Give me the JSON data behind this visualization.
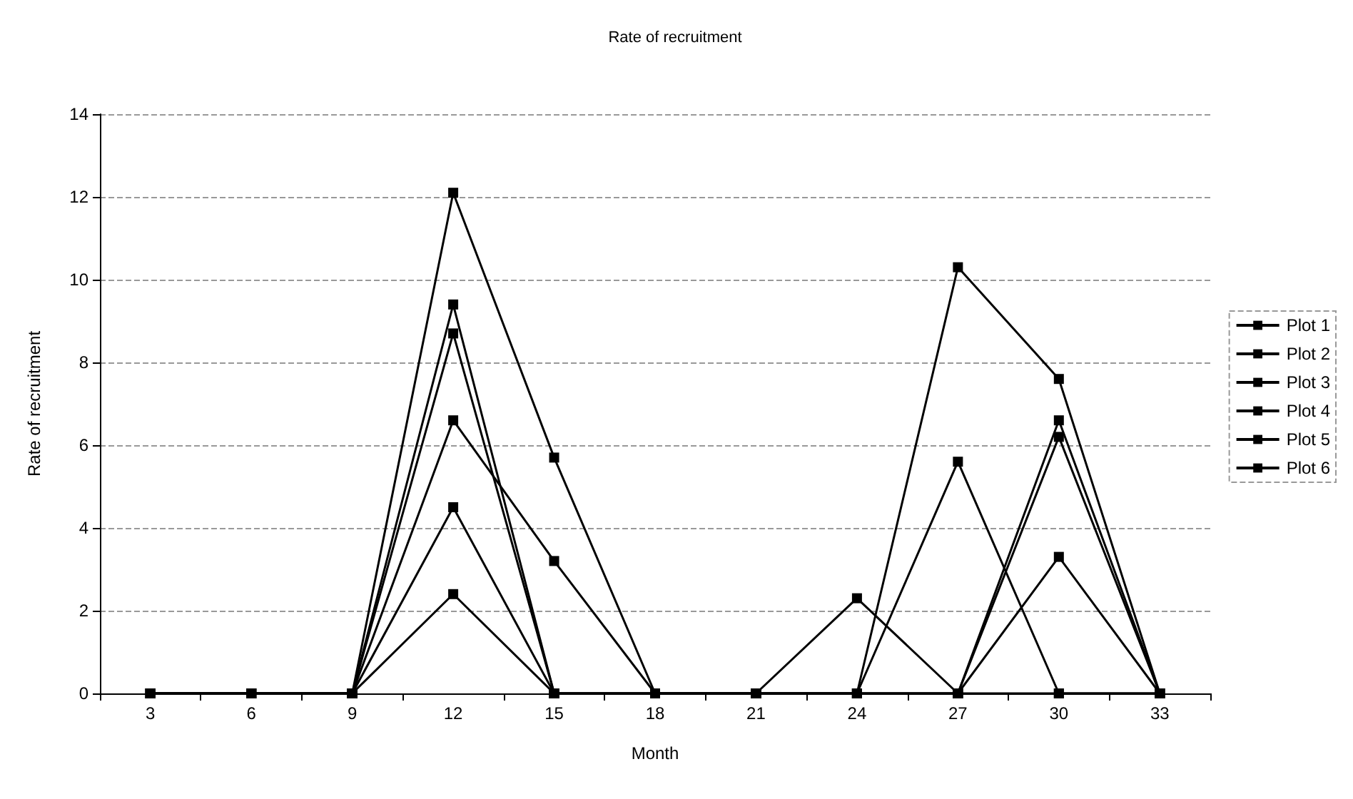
{
  "chart_data": {
    "type": "line",
    "title": "Rate of recruitment",
    "xlabel": "Month",
    "ylabel": "Rate of recruitment",
    "categories": [
      "3",
      "6",
      "9",
      "12",
      "15",
      "18",
      "21",
      "24",
      "27",
      "30",
      "33"
    ],
    "series": [
      {
        "name": "Plot 1",
        "color": "#000000",
        "values": [
          0,
          0,
          0,
          9.4,
          0,
          0,
          0,
          0,
          0,
          6.2,
          0
        ]
      },
      {
        "name": "Plot 2",
        "color": "#000000",
        "values": [
          0,
          0,
          0,
          4.5,
          0,
          0,
          0,
          2.3,
          0,
          3.3,
          0
        ]
      },
      {
        "name": "Plot 3",
        "color": "#000000",
        "values": [
          0,
          0,
          0,
          2.4,
          0,
          0,
          0,
          0,
          0,
          6.6,
          0
        ]
      },
      {
        "name": "Plot 4",
        "color": "#000000",
        "values": [
          0,
          0,
          0,
          6.6,
          3.2,
          0,
          0,
          0,
          0,
          0,
          0
        ]
      },
      {
        "name": "Plot 5",
        "color": "#000000",
        "values": [
          0,
          0,
          0,
          12.1,
          5.7,
          0,
          0,
          0,
          10.3,
          7.6,
          0
        ]
      },
      {
        "name": "Plot 6",
        "color": "#000000",
        "values": [
          0,
          0,
          0,
          8.7,
          0,
          0,
          0,
          0,
          5.6,
          0,
          0
        ]
      }
    ],
    "ylim": [
      0,
      14
    ],
    "yticks": [
      0,
      2,
      4,
      6,
      8,
      10,
      12,
      14
    ],
    "grid": "y",
    "legend": "right",
    "marker": "square",
    "line_style": "solid"
  }
}
